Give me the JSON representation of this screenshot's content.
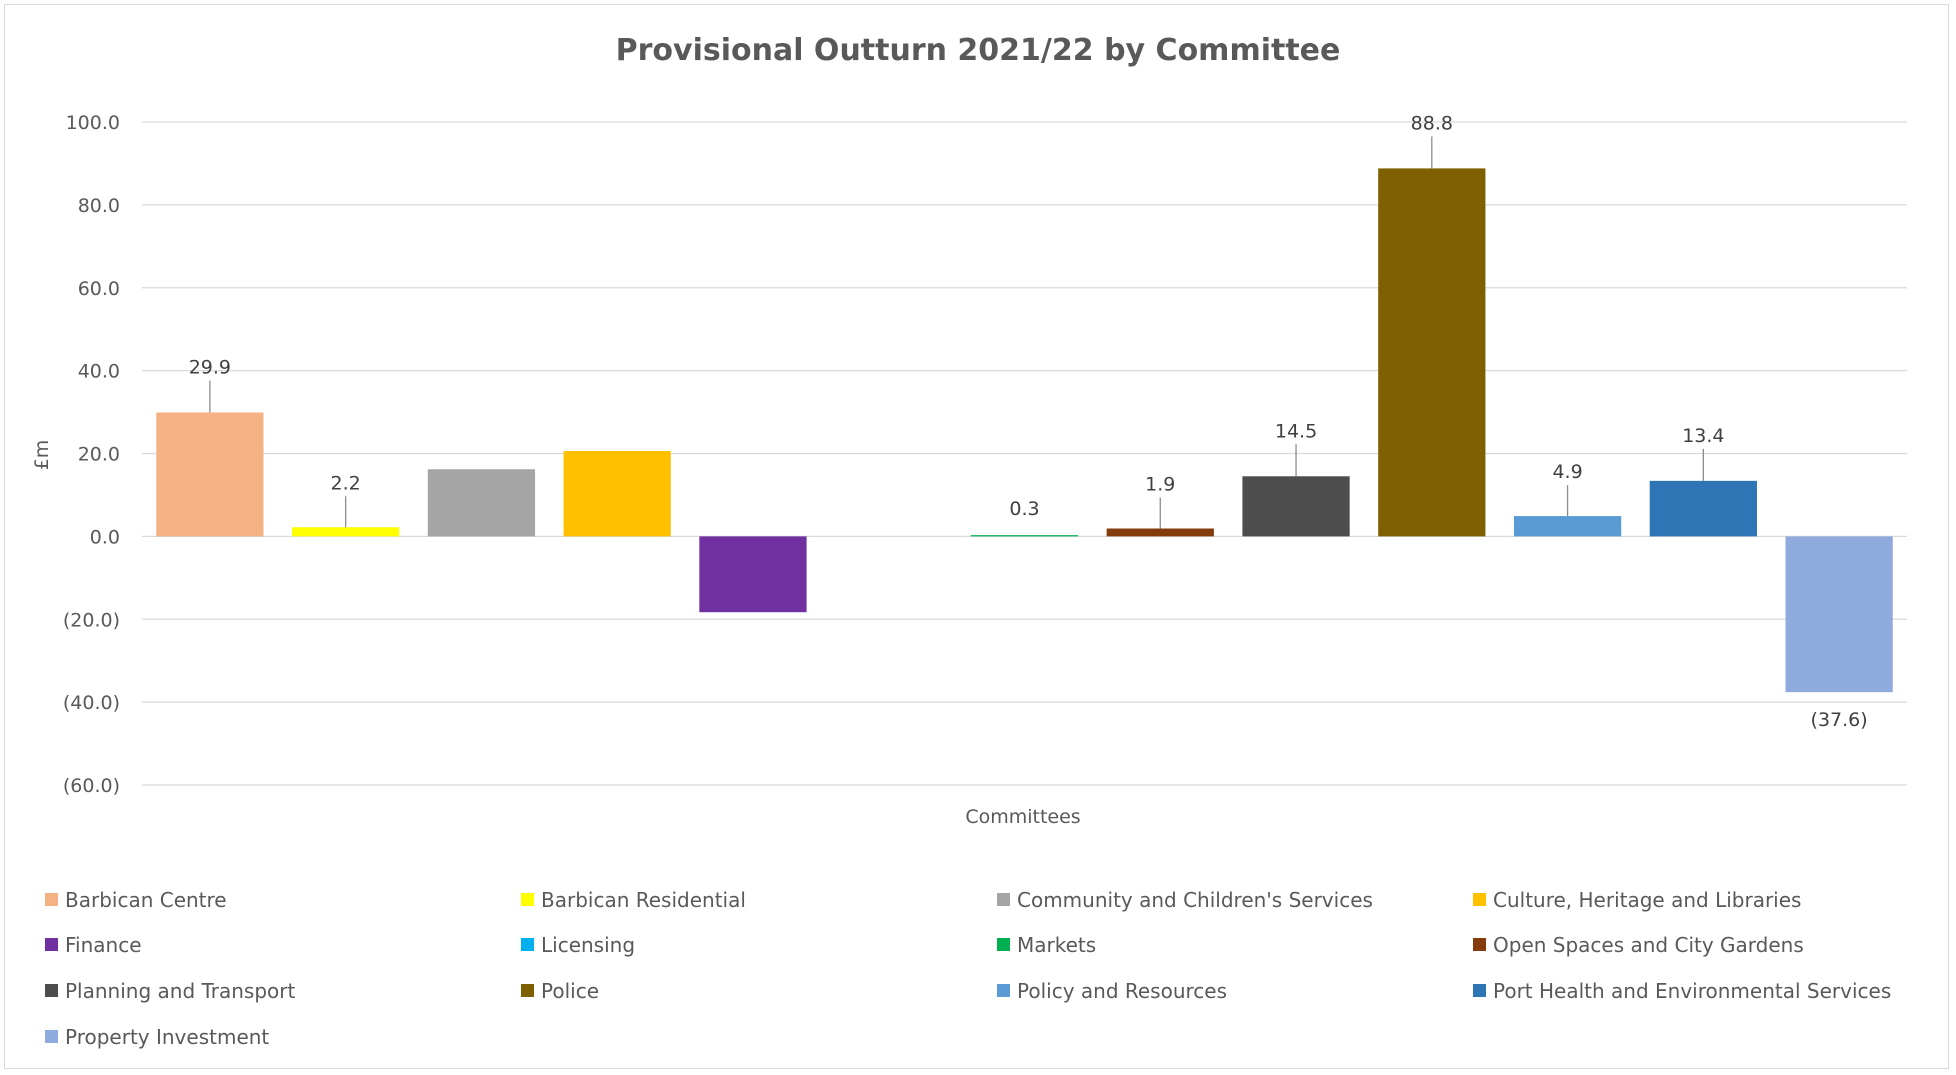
{
  "chart_data": {
    "type": "bar",
    "title": "Provisional Outturn 2021/22 by Committee",
    "xlabel": "Committees",
    "ylabel": "£m",
    "ylim": [
      -60,
      100
    ],
    "yticks": [
      "100.0",
      "80.0",
      "60.0",
      "40.0",
      "20.0",
      "0.0",
      "(20.0)",
      "(40.0)",
      "(60.0)"
    ],
    "grid": true,
    "legend_position": "bottom",
    "series": [
      {
        "name": "Barbican Centre",
        "value": 29.9,
        "label": "29.9",
        "color": "#F4B183"
      },
      {
        "name": "Barbican Residential",
        "value": 2.2,
        "label": "2.2",
        "color": "#FFFF00"
      },
      {
        "name": "Community and Children's Services",
        "value": 16.2,
        "label": "",
        "color": "#A5A5A5"
      },
      {
        "name": "Culture, Heritage and Libraries",
        "value": 20.6,
        "label": "",
        "color": "#FFC000"
      },
      {
        "name": "Finance",
        "value": -18.3,
        "label": "",
        "color": "#7030A0"
      },
      {
        "name": "Licensing",
        "value": 0.0,
        "label": "",
        "color": "#00B0F0"
      },
      {
        "name": "Markets",
        "value": 0.3,
        "label": "0.3",
        "color": "#00B050"
      },
      {
        "name": "Open Spaces and City Gardens",
        "value": 1.9,
        "label": "1.9",
        "color": "#843C0C"
      },
      {
        "name": "Planning and Transport",
        "value": 14.5,
        "label": "14.5",
        "color": "#4D4D4D"
      },
      {
        "name": "Police",
        "value": 88.8,
        "label": "88.8",
        "color": "#7F6000"
      },
      {
        "name": "Policy and Resources",
        "value": 4.9,
        "label": "4.9",
        "color": "#5B9BD5"
      },
      {
        "name": "Port Health and Environmental Services",
        "value": 13.4,
        "label": "13.4",
        "color": "#2E75B6"
      },
      {
        "name": "Property Investment",
        "value": -37.6,
        "label": "(37.6)",
        "color": "#8FAADC"
      }
    ]
  }
}
